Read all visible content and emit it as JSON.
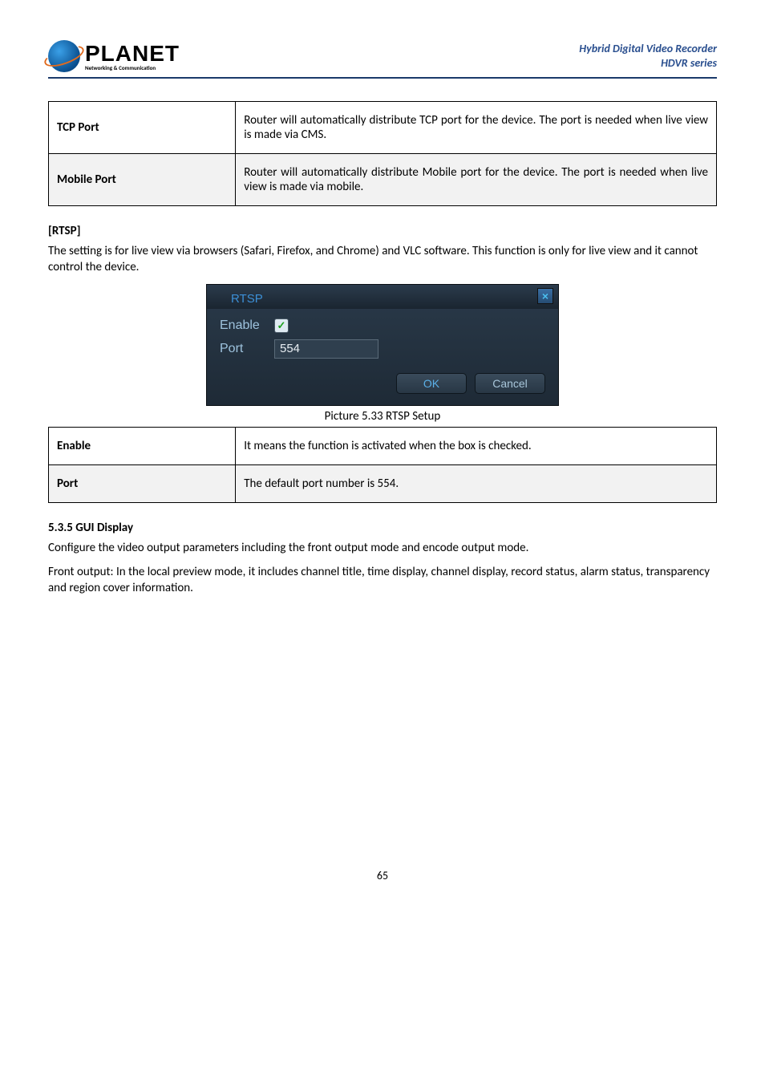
{
  "header": {
    "brand": "PLANET",
    "tagline": "Networking & Communication",
    "title_line1": "Hybrid Digital Video Recorder",
    "title_line2": "HDVR series"
  },
  "upnp_table": {
    "rows": [
      {
        "label": "TCP Port",
        "desc": "Router will automatically distribute TCP port for the device. The port is needed when live view is made via CMS.",
        "shade": false
      },
      {
        "label": "Mobile Port",
        "desc": "Router will automatically distribute Mobile port for the device. The port is needed when live view is made via mobile.",
        "shade": true
      }
    ]
  },
  "rtsp_section": {
    "heading": "[RTSP]",
    "intro": "The setting is for live view via browsers (Safari, Firefox, and Chrome) and VLC software. This function is only for live view and it cannot control the device.",
    "dialog": {
      "title": "RTSP",
      "enable_label": "Enable",
      "enable_checked": true,
      "port_label": "Port",
      "port_value": "554",
      "ok_label": "OK",
      "cancel_label": "Cancel",
      "close_glyph": "×"
    },
    "caption": "Picture 5.33 RTSP Setup",
    "table_rows": [
      {
        "label": "Enable",
        "desc": "It means the function is activated when the box is checked.",
        "shade": false
      },
      {
        "label": "Port",
        "desc": "The default port number is 554.",
        "shade": true
      }
    ]
  },
  "gui_section": {
    "heading": "5.3.5 GUI Display",
    "para1": "Configure the video output parameters including the front output mode and encode output mode.",
    "para2_label": "Front output:",
    "para2": " In the local preview mode, it includes channel title, time display, channel display, record status, alarm status, transparency and region cover information."
  },
  "page_number": "65"
}
